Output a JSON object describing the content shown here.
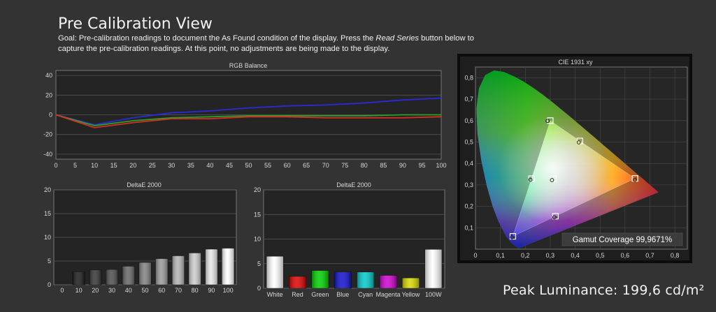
{
  "header": {
    "title": "Pre Calibration View",
    "goal_prefix": "Goal: Pre-calibration readings to document the As Found condition of the display. Press the ",
    "goal_emphasis": "Read Series",
    "goal_suffix": " button below to capture the pre-calibration readings. At this point, no adjustments are being made to the display."
  },
  "peak_luminance": "Peak Luminance: 199,6 cd/m²",
  "gamut_coverage": "Gamut Coverage 99,9671%",
  "chart_data": [
    {
      "type": "line",
      "title": "RGB Balance",
      "x": [
        0,
        10,
        20,
        30,
        40,
        50,
        60,
        70,
        80,
        90,
        100
      ],
      "xticks": [
        0,
        5,
        10,
        15,
        20,
        25,
        30,
        35,
        40,
        45,
        50,
        55,
        60,
        65,
        70,
        75,
        80,
        85,
        90,
        95,
        100
      ],
      "yticks": [
        -40,
        -20,
        0,
        20,
        40
      ],
      "xlim": [
        0,
        100
      ],
      "ylim": [
        -45,
        45
      ],
      "grid": true,
      "series": [
        {
          "color": "#2a2ad8",
          "values": [
            0,
            -10,
            -3,
            2,
            4,
            7,
            9,
            10,
            12,
            15,
            17
          ]
        },
        {
          "color": "#2aa02a",
          "values": [
            0,
            -11,
            -6,
            -3,
            -2,
            -1,
            -1,
            -1,
            -1,
            0,
            0
          ]
        },
        {
          "color": "#d83020",
          "values": [
            0,
            -13,
            -8,
            -4,
            -4,
            -2,
            -2,
            -3,
            -3,
            -3,
            -2
          ]
        }
      ]
    },
    {
      "type": "bar",
      "title": "DeltaE 2000",
      "categories": [
        "0",
        "10",
        "20",
        "30",
        "40",
        "50",
        "60",
        "70",
        "80",
        "90",
        "100"
      ],
      "values": [
        0,
        2.7,
        3.1,
        3.2,
        3.9,
        4.7,
        5.5,
        6.1,
        6.7,
        7.5,
        7.7
      ],
      "colors": [
        "#000000",
        "#1a1a1a",
        "#333333",
        "#4d4d4d",
        "#666666",
        "#808080",
        "#999999",
        "#b3b3b3",
        "#cccccc",
        "#e6e6e6",
        "#ffffff"
      ],
      "yticks": [
        0,
        5,
        10,
        15,
        20
      ],
      "ylim": [
        0,
        20
      ]
    },
    {
      "type": "bar",
      "title": "DeltaE 2000",
      "categories": [
        "White",
        "Red",
        "Green",
        "Blue",
        "Cyan",
        "Magenta",
        "Yellow",
        "100W"
      ],
      "values": [
        6.5,
        2.4,
        3.6,
        3.3,
        3.3,
        2.6,
        2.1,
        7.9
      ],
      "colors": [
        "#ffffff",
        "#e00000",
        "#00d000",
        "#1010d0",
        "#00c8c8",
        "#d000d0",
        "#d8d800",
        "#ffffff"
      ],
      "yticks": [
        0,
        5,
        10,
        15,
        20
      ],
      "ylim": [
        0,
        20
      ]
    },
    {
      "type": "scatter",
      "title": "CIE 1931 xy",
      "xticks": [
        "0",
        "0,1",
        "0,2",
        "0,3",
        "0,4",
        "0,5",
        "0,6",
        "0,7",
        "0,8"
      ],
      "yticks": [
        "0,1",
        "0,2",
        "0,3",
        "0,4",
        "0,5",
        "0,6",
        "0,7",
        "0,8"
      ],
      "xlim": [
        0,
        0.85
      ],
      "ylim": [
        0,
        0.85
      ],
      "targets": [
        [
          0.64,
          0.33
        ],
        [
          0.3,
          0.6
        ],
        [
          0.15,
          0.06
        ],
        [
          0.3127,
          0.329
        ],
        [
          0.225,
          0.329
        ],
        [
          0.321,
          0.154
        ],
        [
          0.419,
          0.505
        ]
      ],
      "measured": [
        [
          0.645,
          0.33
        ],
        [
          0.295,
          0.605
        ],
        [
          0.152,
          0.062
        ],
        [
          0.3127,
          0.329
        ],
        [
          0.226,
          0.33
        ],
        [
          0.322,
          0.155
        ],
        [
          0.42,
          0.505
        ]
      ]
    }
  ]
}
